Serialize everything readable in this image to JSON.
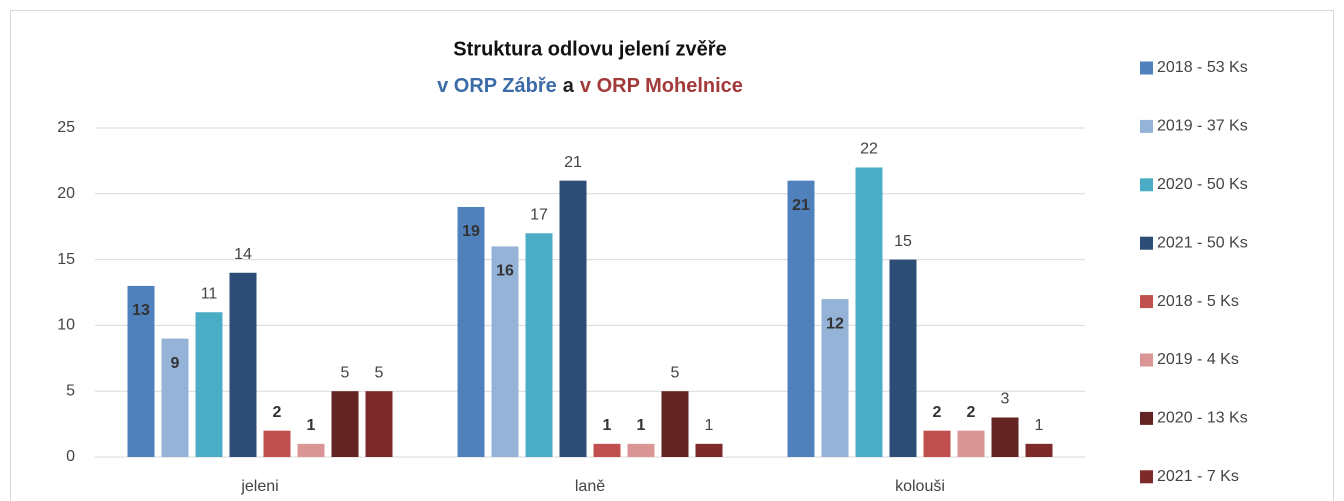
{
  "chart_data": {
    "type": "bar",
    "title": "Struktura odlovu jelení zvěře",
    "subtitle_parts": [
      "v ORP Zábře",
      "a",
      "v ORP Mohelnice"
    ],
    "subtitle_colors": [
      "#3c6ca8",
      "#222222",
      "#a33a3a"
    ],
    "categories": [
      "jeleni",
      "laně",
      "kolouši"
    ],
    "series": [
      {
        "name": "2018 - 53 Ks",
        "color": "#4f81bd",
        "values": [
          13,
          19,
          21
        ]
      },
      {
        "name": "2019 - 37 Ks",
        "color": "#95b3d7",
        "values": [
          9,
          16,
          12
        ]
      },
      {
        "name": "2020 - 50 Ks",
        "color": "#4bacc6",
        "values": [
          11,
          17,
          22
        ]
      },
      {
        "name": "2021 - 50 Ks",
        "color": "#2c4d75",
        "values": [
          14,
          21,
          15
        ]
      },
      {
        "name": "2018 - 5 Ks",
        "color": "#c0504d",
        "values": [
          2,
          1,
          2
        ]
      },
      {
        "name": "2019 - 4 Ks",
        "color": "#da9694",
        "values": [
          1,
          1,
          2
        ]
      },
      {
        "name": "2020 - 13 Ks",
        "color": "#632523",
        "values": [
          5,
          5,
          3
        ]
      },
      {
        "name": "2021 - 7 Ks",
        "color": "#7f2a2a",
        "values": [
          5,
          1,
          1
        ]
      }
    ],
    "ylim": [
      0,
      25
    ],
    "yticks": [
      0,
      5,
      10,
      15,
      20,
      25
    ],
    "grid": true,
    "legend": "right"
  }
}
